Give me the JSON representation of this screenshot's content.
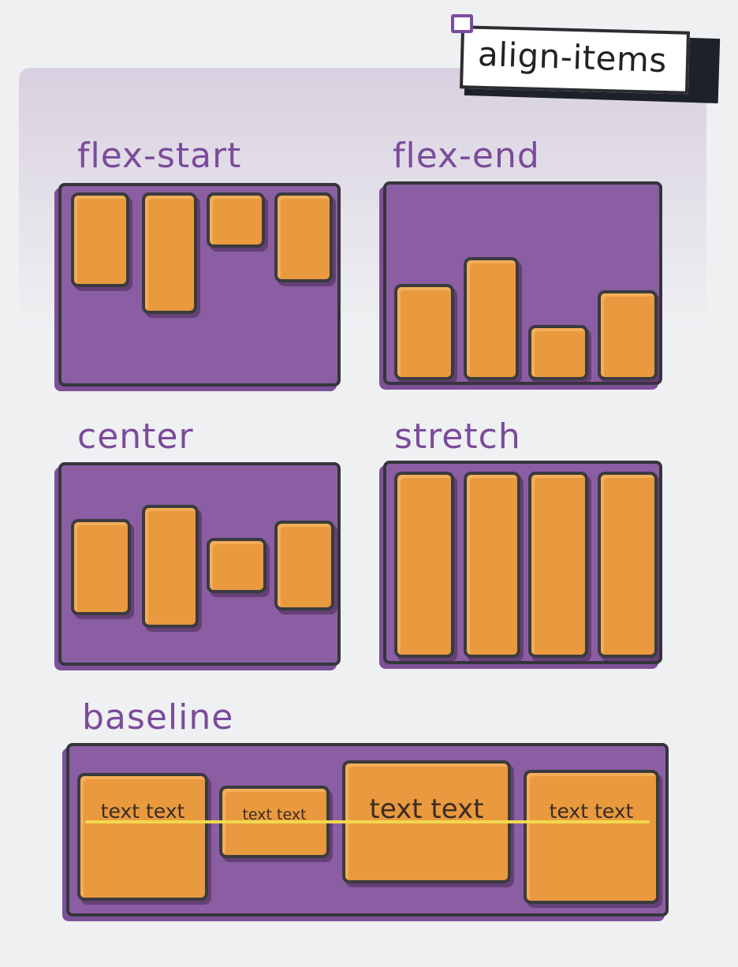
{
  "title": "align-items",
  "panels": {
    "flex_start": {
      "label": "flex-start"
    },
    "flex_end": {
      "label": "flex-end"
    },
    "center": {
      "label": "center"
    },
    "stretch": {
      "label": "stretch"
    },
    "baseline": {
      "label": "baseline",
      "items": [
        "text text",
        "text text",
        "text text",
        "text text"
      ]
    }
  },
  "colors": {
    "container": "#8b5ea3",
    "item": "#e9993e",
    "label": "#7b4b9b",
    "baseline_line": "#f2d94e"
  }
}
